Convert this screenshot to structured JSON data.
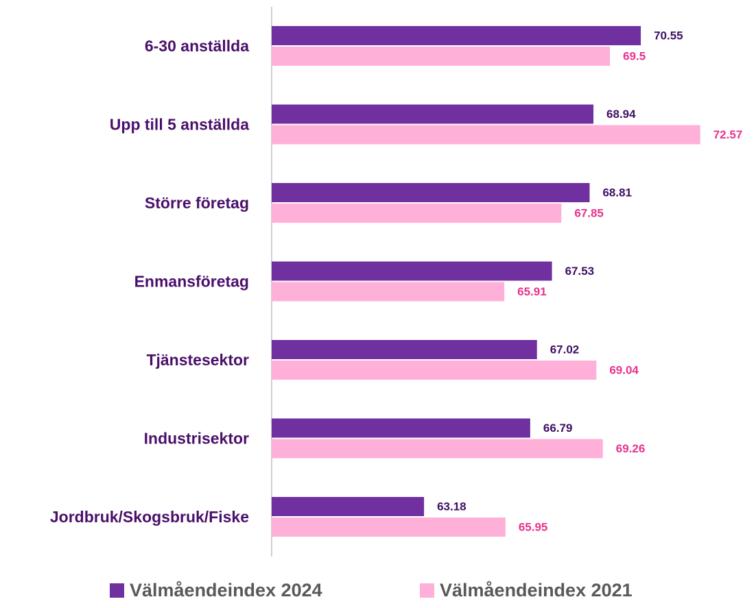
{
  "chart_data": {
    "type": "barh",
    "categories": [
      "6-30 anställda",
      "Upp till 5 anställda",
      "Större företag",
      "Enmansföretag",
      "Tjänstesektor",
      "Industrisektor",
      "Jordbruk/Skogsbruk/Fiske"
    ],
    "series": [
      {
        "name": "Välmåendeindex 2024",
        "color": "#7030a0",
        "label_color": "#3d0f63",
        "values": [
          70.55,
          68.94,
          68.81,
          67.53,
          67.02,
          66.79,
          63.18
        ]
      },
      {
        "name": "Välmåendeindex 2021",
        "color": "#ffb0d8",
        "label_color": "#e8328c",
        "values": [
          69.5,
          72.57,
          67.85,
          65.91,
          69.04,
          69.26,
          65.95
        ]
      }
    ],
    "xlim": [
      58,
      74
    ],
    "legend": "bottom"
  }
}
